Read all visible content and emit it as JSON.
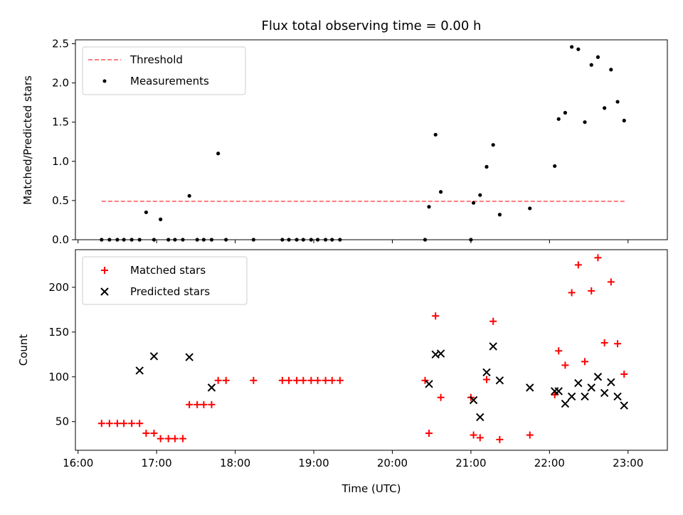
{
  "chart_data": [
    {
      "type": "scatter",
      "title": "Flux total observing time = 0.00 h",
      "xlabel": "",
      "ylabel": "Matched/Predicted stars",
      "xlim": [
        "16:00",
        "23:00"
      ],
      "ylim": [
        0,
        2.55
      ],
      "yticks": [
        "0.0",
        "0.5",
        "1.0",
        "1.5",
        "2.0",
        "2.5"
      ],
      "legend_position": "top-left",
      "series": [
        {
          "name": "Threshold",
          "style": "dashed-line",
          "color": "#ff7f7f",
          "x": [
            "16:18",
            "22:58"
          ],
          "y": [
            0.49,
            0.49
          ]
        },
        {
          "name": "Measurements",
          "style": "dot",
          "color": "#000000",
          "x": [
            "16:18",
            "16:24",
            "16:30",
            "16:35",
            "16:41",
            "16:47",
            "16:52",
            "16:58",
            "17:03",
            "17:09",
            "17:14",
            "17:20",
            "17:25",
            "17:31",
            "17:36",
            "17:42",
            "17:47",
            "17:53",
            "18:14",
            "18:36",
            "18:41",
            "18:47",
            "18:52",
            "18:58",
            "19:03",
            "19:09",
            "19:14",
            "19:20",
            "20:25",
            "20:28",
            "20:33",
            "20:37",
            "21:00",
            "21:02",
            "21:07",
            "21:12",
            "21:17",
            "21:22",
            "21:45",
            "22:04",
            "22:07",
            "22:12",
            "22:17",
            "22:22",
            "22:27",
            "22:32",
            "22:37",
            "22:42",
            "22:47",
            "22:52",
            "22:57"
          ],
          "y": [
            0.0,
            0.0,
            0.0,
            0.0,
            0.0,
            0.0,
            0.35,
            0.0,
            0.26,
            0.0,
            0.0,
            0.0,
            0.56,
            0.0,
            0.0,
            0.0,
            1.1,
            0.0,
            0.0,
            0.0,
            0.0,
            0.0,
            0.0,
            0.0,
            0.0,
            0.0,
            0.0,
            0.0,
            0.0,
            0.42,
            1.34,
            0.61,
            0.0,
            0.47,
            0.57,
            0.93,
            1.21,
            0.32,
            0.4,
            0.94,
            1.54,
            1.62,
            2.46,
            2.43,
            1.5,
            2.23,
            2.33,
            1.68,
            2.17,
            1.76,
            1.52
          ]
        }
      ]
    },
    {
      "type": "scatter",
      "title": "",
      "xlabel": "Time (UTC)",
      "ylabel": "Count",
      "xlim": [
        "16:00",
        "23:00"
      ],
      "ylim": [
        18,
        242
      ],
      "xticks": [
        "16:00",
        "17:00",
        "18:00",
        "19:00",
        "20:00",
        "21:00",
        "22:00",
        "23:00"
      ],
      "yticks": [
        "50",
        "100",
        "150",
        "200"
      ],
      "legend_position": "top-left",
      "series": [
        {
          "name": "Matched stars",
          "marker": "plus",
          "color": "#ff0000",
          "x": [
            "16:18",
            "16:24",
            "16:30",
            "16:35",
            "16:41",
            "16:47",
            "16:52",
            "16:58",
            "17:03",
            "17:09",
            "17:14",
            "17:20",
            "17:25",
            "17:31",
            "17:36",
            "17:42",
            "17:47",
            "17:53",
            "18:14",
            "18:36",
            "18:41",
            "18:47",
            "18:52",
            "18:58",
            "19:03",
            "19:09",
            "19:14",
            "19:20",
            "20:25",
            "20:28",
            "20:33",
            "20:37",
            "21:00",
            "21:02",
            "21:07",
            "21:12",
            "21:17",
            "21:22",
            "21:45",
            "22:04",
            "22:07",
            "22:12",
            "22:17",
            "22:22",
            "22:27",
            "22:32",
            "22:37",
            "22:42",
            "22:47",
            "22:52",
            "22:57"
          ],
          "y": [
            48,
            48,
            48,
            48,
            48,
            48,
            37,
            37,
            31,
            31,
            31,
            31,
            69,
            69,
            69,
            69,
            96,
            96,
            96,
            96,
            96,
            96,
            96,
            96,
            96,
            96,
            96,
            96,
            96,
            37,
            168,
            77,
            77,
            35,
            32,
            97,
            162,
            30,
            35,
            80,
            129,
            113,
            194,
            225,
            117,
            196,
            233,
            138,
            206,
            137,
            103
          ]
        },
        {
          "name": "Predicted stars",
          "marker": "x",
          "color": "#000000",
          "x": [
            "16:47",
            "16:58",
            "17:25",
            "17:42",
            "20:28",
            "20:33",
            "20:37",
            "21:02",
            "21:07",
            "21:12",
            "21:17",
            "21:22",
            "21:45",
            "22:04",
            "22:07",
            "22:12",
            "22:17",
            "22:22",
            "22:27",
            "22:32",
            "22:37",
            "22:42",
            "22:47",
            "22:52",
            "22:57"
          ],
          "y": [
            107,
            123,
            122,
            88,
            92,
            125,
            126,
            74,
            55,
            105,
            134,
            96,
            88,
            84,
            84,
            70,
            78,
            93,
            78,
            88,
            100,
            82,
            94,
            78,
            68
          ]
        }
      ]
    }
  ]
}
